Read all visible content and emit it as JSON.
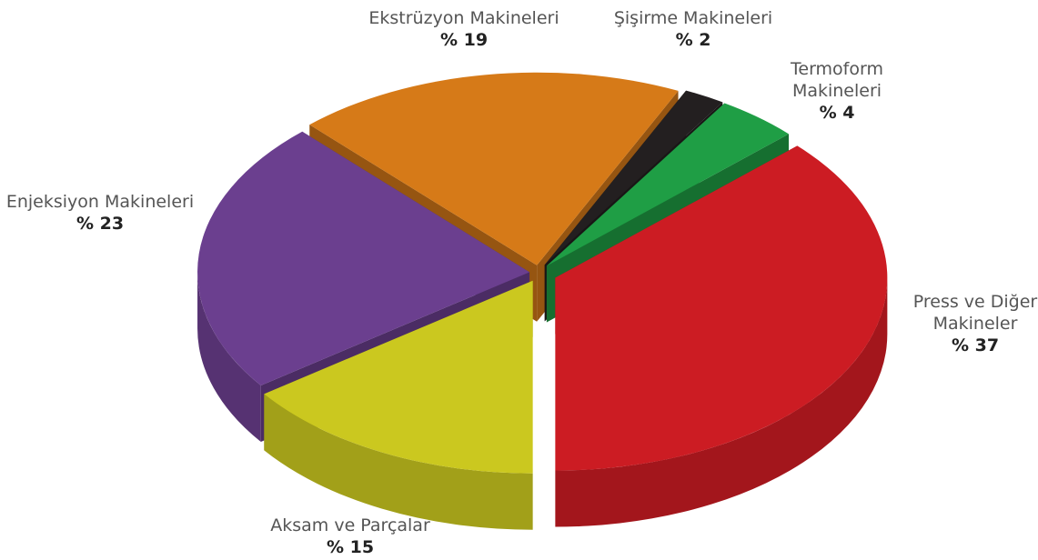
{
  "chart_data": {
    "type": "pie",
    "categories": [
      "Ekstrüzyon Makineleri",
      "Şişirme Makineleri",
      "Termoform Makineleri",
      "Press ve Diğer Makineler",
      "Aksam ve Parçalar",
      "Enjeksiyon Makineleri"
    ],
    "values": [
      19,
      2,
      4,
      37,
      15,
      23
    ],
    "value_labels": [
      "% 19",
      "% 2",
      "% 4",
      "% 37",
      "% 15",
      "% 23"
    ],
    "colors": [
      "#d67a18",
      "#231f20",
      "#1f9e45",
      "#cc1c23",
      "#cbc81f",
      "#6b3f8f"
    ]
  }
}
